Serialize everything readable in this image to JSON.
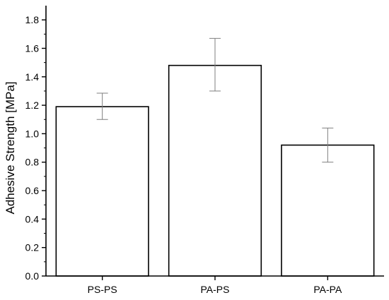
{
  "chart_data": {
    "type": "bar",
    "title": "",
    "xlabel": "",
    "ylabel": "Adhesive Strength [MPa]",
    "categories": [
      "PS-PS",
      "PA-PS",
      "PA-PA"
    ],
    "values": [
      1.19,
      1.48,
      0.92
    ],
    "error_low": [
      1.1,
      1.3,
      0.8
    ],
    "error_high": [
      1.285,
      1.67,
      1.04
    ],
    "ylim": [
      0,
      1.9
    ],
    "y_ticks": [
      "0.0",
      "0.2",
      "0.4",
      "0.6",
      "0.8",
      "1.0",
      "1.2",
      "1.4",
      "1.6",
      "1.8"
    ],
    "grid": false,
    "legend": "none",
    "bar_fill": "#ffffff",
    "bar_stroke": "#000000",
    "error_color": "#7f7f7f"
  }
}
